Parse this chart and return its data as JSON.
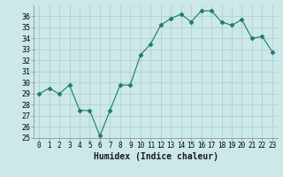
{
  "x": [
    0,
    1,
    2,
    3,
    4,
    5,
    6,
    7,
    8,
    9,
    10,
    11,
    12,
    13,
    14,
    15,
    16,
    17,
    18,
    19,
    20,
    21,
    22,
    23
  ],
  "y": [
    29,
    29.5,
    29,
    29.8,
    27.5,
    27.5,
    25.2,
    27.5,
    29.8,
    29.8,
    32.5,
    33.5,
    35.2,
    35.8,
    36.2,
    35.5,
    36.5,
    36.5,
    35.5,
    35.2,
    35.7,
    34,
    34.2,
    32.8
  ],
  "xlabel": "Humidex (Indice chaleur)",
  "line_color": "#1a7a6e",
  "marker": "D",
  "marker_size": 2.5,
  "bg_color": "#cce8e8",
  "grid_color": "#aacccc",
  "ylim": [
    25,
    37
  ],
  "xlim": [
    -0.5,
    23.5
  ],
  "yticks": [
    25,
    26,
    27,
    28,
    29,
    30,
    31,
    32,
    33,
    34,
    35,
    36
  ],
  "xticks": [
    0,
    1,
    2,
    3,
    4,
    5,
    6,
    7,
    8,
    9,
    10,
    11,
    12,
    13,
    14,
    15,
    16,
    17,
    18,
    19,
    20,
    21,
    22,
    23
  ],
  "xlabel_fontsize": 7,
  "tick_fontsize": 5.5,
  "ytick_fontsize": 6
}
